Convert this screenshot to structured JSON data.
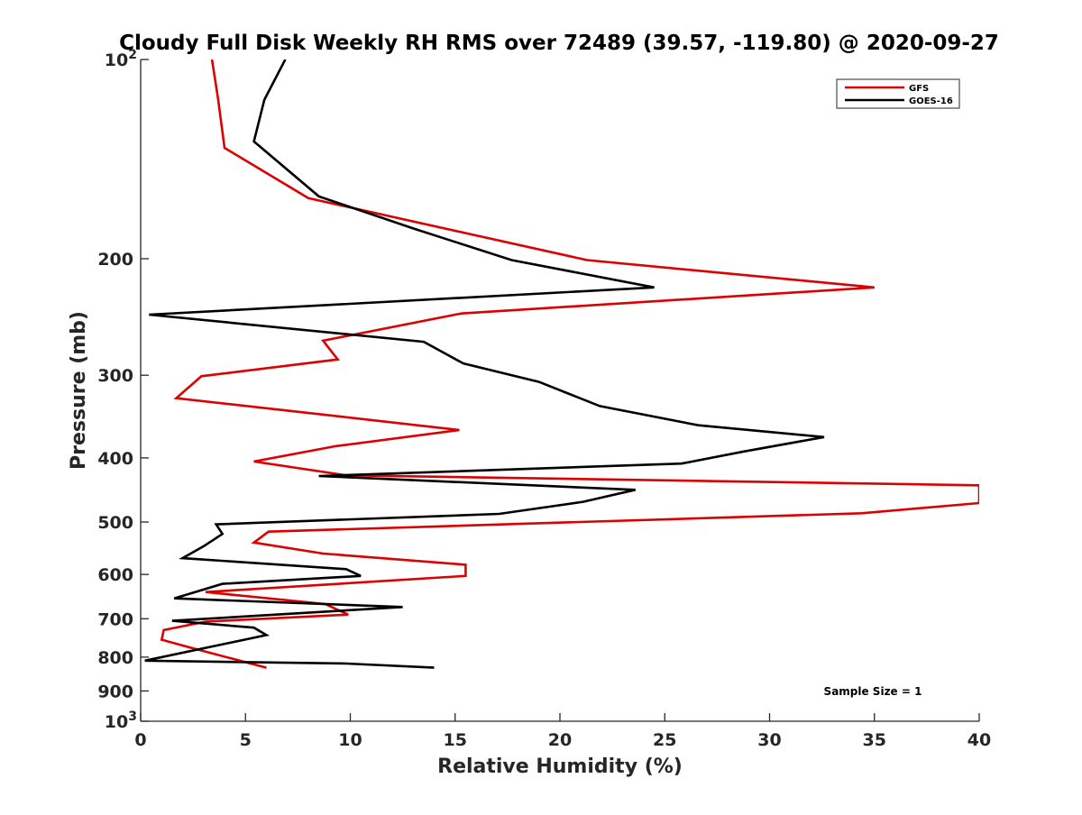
{
  "chart_data": {
    "type": "line",
    "title": "Cloudy Full Disk Weekly RH RMS over 72489 (39.57, -119.80) @ 2020-09-27",
    "xlabel": "Relative Humidity (%)",
    "ylabel": "Pressure (mb)",
    "xlim": [
      0,
      40
    ],
    "ylim": [
      100,
      1000
    ],
    "y_scale": "log",
    "y_reversed": true,
    "x_ticks": [
      "0",
      "5",
      "10",
      "15",
      "20",
      "25",
      "30",
      "35",
      "40"
    ],
    "y_ticks": [
      {
        "value": 100,
        "label": "10",
        "sup": "2"
      },
      {
        "value": 200,
        "label": "200",
        "sup": ""
      },
      {
        "value": 300,
        "label": "300",
        "sup": ""
      },
      {
        "value": 400,
        "label": "400",
        "sup": ""
      },
      {
        "value": 500,
        "label": "500",
        "sup": ""
      },
      {
        "value": 600,
        "label": "600",
        "sup": ""
      },
      {
        "value": 700,
        "label": "700",
        "sup": ""
      },
      {
        "value": 800,
        "label": "800",
        "sup": ""
      },
      {
        "value": 900,
        "label": "900",
        "sup": ""
      },
      {
        "value": 1000,
        "label": "10",
        "sup": "3"
      }
    ],
    "legend_position": "top-right",
    "grid": false,
    "annotation": "Sample Size = 1",
    "series": [
      {
        "name": "GFS",
        "color": "#dd0000",
        "points": [
          [
            3.4,
            100
          ],
          [
            3.7,
            115
          ],
          [
            4.0,
            136
          ],
          [
            8.0,
            162
          ],
          [
            21.3,
            201
          ],
          [
            35.0,
            221
          ],
          [
            15.3,
            242
          ],
          [
            8.7,
            266
          ],
          [
            9.4,
            284
          ],
          [
            2.9,
            301
          ],
          [
            1.7,
            325
          ],
          [
            9.4,
            346
          ],
          [
            15.2,
            363
          ],
          [
            9.3,
            384
          ],
          [
            5.4,
            405
          ],
          [
            9.8,
            425
          ],
          [
            40.0,
            440
          ],
          [
            40.0,
            468
          ],
          [
            34.4,
            485
          ],
          [
            6.1,
            517
          ],
          [
            5.4,
            537
          ],
          [
            8.7,
            558
          ],
          [
            15.5,
            580
          ],
          [
            15.5,
            603
          ],
          [
            3.1,
            638
          ],
          [
            8.8,
            665
          ],
          [
            9.9,
            690
          ],
          [
            3.1,
            707
          ],
          [
            1.1,
            728
          ],
          [
            1.0,
            753
          ],
          [
            2.3,
            773
          ],
          [
            6.0,
            830
          ]
        ]
      },
      {
        "name": "GOES-16",
        "color": "#000000",
        "points": [
          [
            6.9,
            100
          ],
          [
            5.9,
            115
          ],
          [
            5.4,
            133
          ],
          [
            8.5,
            161
          ],
          [
            13.0,
            180
          ],
          [
            17.7,
            201
          ],
          [
            24.5,
            221
          ],
          [
            0.4,
            243
          ],
          [
            13.5,
            267
          ],
          [
            15.4,
            288
          ],
          [
            19.0,
            307
          ],
          [
            21.9,
            334
          ],
          [
            26.6,
            357
          ],
          [
            32.6,
            372
          ],
          [
            28.8,
            391
          ],
          [
            25.8,
            408
          ],
          [
            8.5,
            426
          ],
          [
            23.6,
            447
          ],
          [
            21.1,
            466
          ],
          [
            17.1,
            486
          ],
          [
            3.6,
            504
          ],
          [
            3.9,
            521
          ],
          [
            3.0,
            544
          ],
          [
            2.0,
            567
          ],
          [
            9.8,
            589
          ],
          [
            10.5,
            603
          ],
          [
            3.9,
            620
          ],
          [
            1.6,
            652
          ],
          [
            12.5,
            672
          ],
          [
            1.5,
            705
          ],
          [
            5.4,
            722
          ],
          [
            6.0,
            741
          ],
          [
            0.2,
            810
          ],
          [
            9.8,
            818
          ],
          [
            14.0,
            830
          ]
        ]
      }
    ]
  }
}
